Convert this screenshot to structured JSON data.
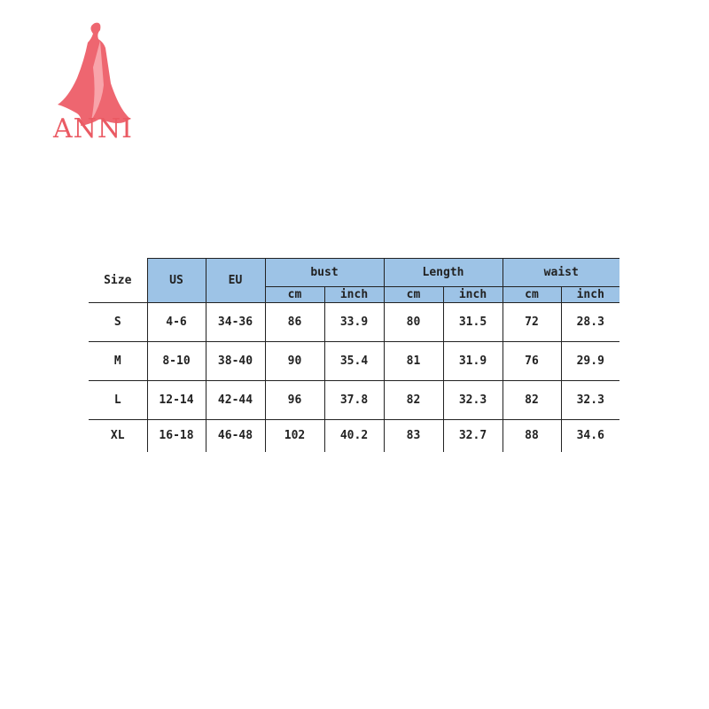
{
  "brand": {
    "name": "ANNI",
    "color": "#ea5a63"
  },
  "table": {
    "header_color": "#9dc3e6",
    "headers": {
      "size": "Size",
      "us": "US",
      "eu": "EU",
      "bust": "bust",
      "length": "Length",
      "waist": "waist"
    },
    "subheaders": [
      "cm",
      "inch",
      "cm",
      "inch",
      "cm",
      "inch"
    ],
    "rows": [
      [
        "S",
        "4-6",
        "34-36",
        "86",
        "33.9",
        "80",
        "31.5",
        "72",
        "28.3"
      ],
      [
        "M",
        "8-10",
        "38-40",
        "90",
        "35.4",
        "81",
        "31.9",
        "76",
        "29.9"
      ],
      [
        "L",
        "12-14",
        "42-44",
        "96",
        "37.8",
        "82",
        "32.3",
        "82",
        "32.3"
      ],
      [
        "XL",
        "16-18",
        "46-48",
        "102",
        "40.2",
        "83",
        "32.7",
        "88",
        "34.6"
      ]
    ]
  }
}
